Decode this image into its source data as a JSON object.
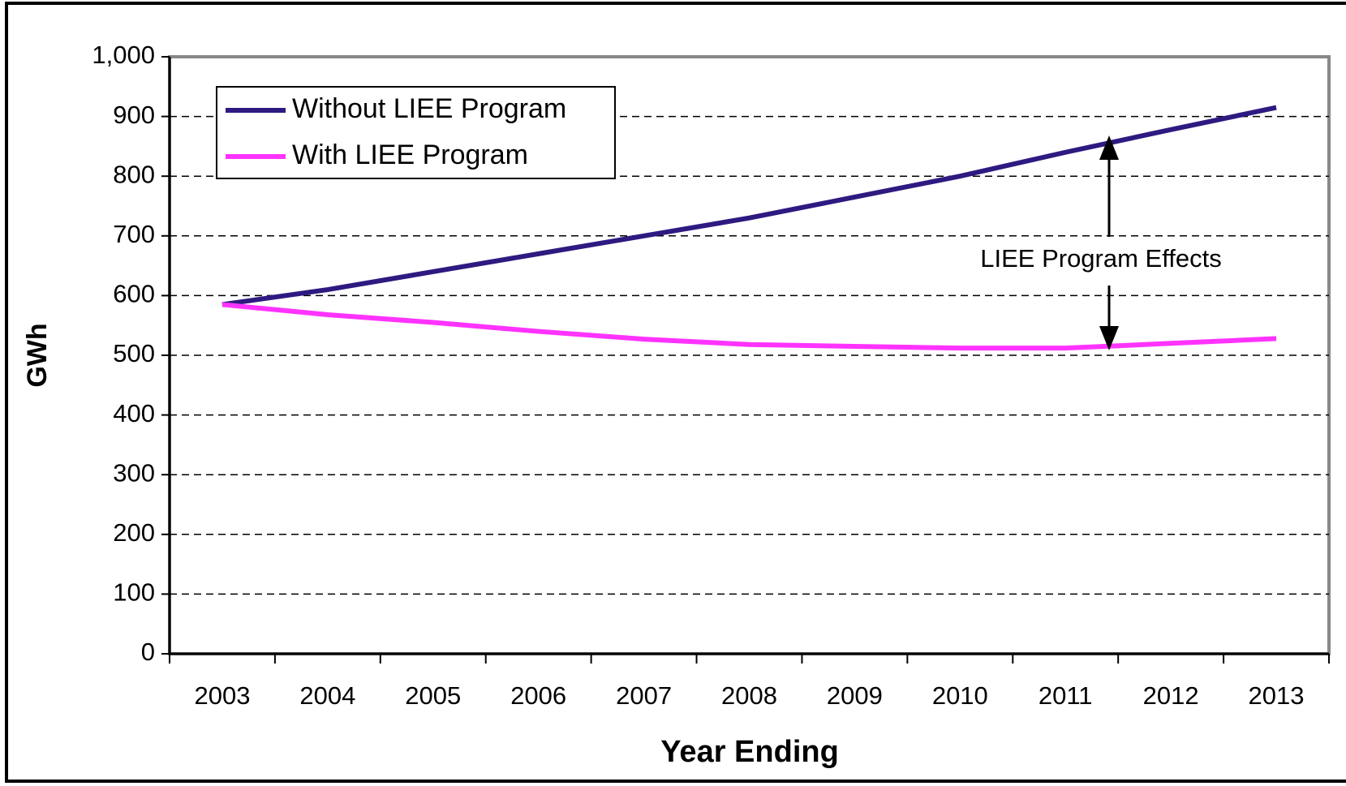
{
  "chart_data": {
    "type": "line",
    "x_label": "Year Ending",
    "y_label": "GWh",
    "categories": [
      "2003",
      "2004",
      "2005",
      "2006",
      "2007",
      "2008",
      "2009",
      "2010",
      "2011",
      "2012",
      "2013"
    ],
    "series": [
      {
        "name": "Without LIEE Program",
        "color": "#2e1a80",
        "values": [
          585,
          610,
          640,
          670,
          700,
          730,
          765,
          800,
          840,
          878,
          915
        ]
      },
      {
        "name": "With LIEE Program",
        "color": "#ff33ff",
        "values": [
          585,
          568,
          555,
          540,
          527,
          518,
          515,
          512,
          512,
          520,
          528
        ]
      }
    ],
    "ylim": [
      0,
      1000
    ],
    "yticks": [
      0,
      100,
      200,
      300,
      400,
      500,
      600,
      700,
      800,
      900,
      {
        "value": 1000,
        "label": "1,000"
      }
    ],
    "grid": true,
    "legend": "upper left",
    "annotation": "LIEE Program Effects"
  }
}
